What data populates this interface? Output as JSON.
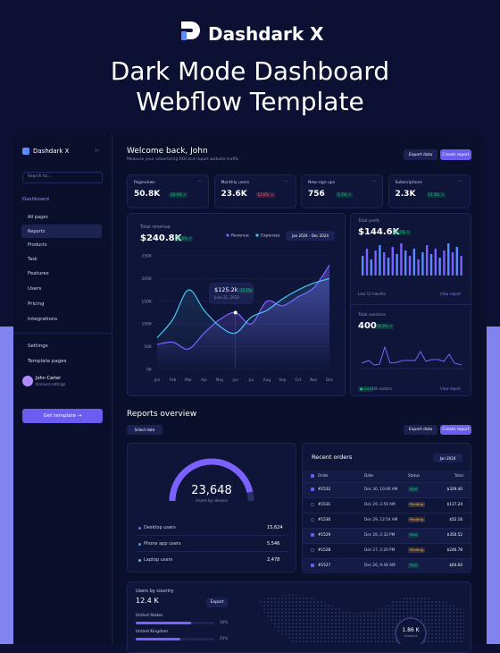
{
  "header": {
    "brand": "Dashdark X",
    "title_line1": "Dark Mode Dashboard",
    "title_line2": "Webflow Template"
  },
  "sidebar": {
    "brand": "Dashdark X",
    "search": "Search for...",
    "dashboard": "Dashboard",
    "sub": [
      "All pages",
      "Reports",
      "Products",
      "Task"
    ],
    "menu": [
      "Features",
      "Users",
      "Pricing",
      "Integrations"
    ],
    "settings": "Settings",
    "templates": "Template pages",
    "user": "John Carter",
    "user_sub": "Account settings",
    "cta": "Get template →"
  },
  "welcome": {
    "title": "Welcome back, John",
    "subtitle": "Measure your advertising ROI and report website traffic.",
    "export": "Export data",
    "create": "Create report"
  },
  "stats": [
    {
      "label": "Pageviews",
      "value": "50.8K",
      "change": "28.4% ↗",
      "up": true
    },
    {
      "label": "Monthly users",
      "value": "23.6K",
      "change": "12.6% ↘",
      "up": false
    },
    {
      "label": "New sign ups",
      "value": "756",
      "change": "3.1% ↗",
      "up": true
    },
    {
      "label": "Subscriptions",
      "value": "2.3K",
      "change": "11.3% ↗",
      "up": true
    }
  ],
  "revenue": {
    "title": "Total revenue",
    "value": "$240.8K",
    "change": "24.6% ↗",
    "range": "Jan 2024 - Dec 2024",
    "tooltip_value": "$125.2k",
    "tooltip_change": "12.5%",
    "tooltip_date": "June 21, 2023",
    "chart": {
      "type": "line",
      "categories": [
        "Jan",
        "Feb",
        "Mar",
        "Apr",
        "May",
        "Jun",
        "Jul",
        "Aug",
        "Sep",
        "Oct",
        "Nov",
        "Dec"
      ],
      "ylim": [
        0,
        250
      ],
      "yticks": [
        {
          "value": 0,
          "label": "0K"
        },
        {
          "value": 50,
          "label": "50K"
        },
        {
          "value": 100,
          "label": "100K"
        },
        {
          "value": 150,
          "label": "150K"
        },
        {
          "value": 200,
          "label": "200K"
        },
        {
          "value": 250,
          "label": "250K"
        }
      ],
      "grid": true,
      "series": [
        {
          "name": "Revenue",
          "color": "#7b61ff",
          "values": [
            55,
            60,
            45,
            80,
            110,
            125,
            100,
            150,
            140,
            160,
            180,
            230
          ]
        },
        {
          "name": "Expenses",
          "color": "#4fc3f7",
          "values": [
            70,
            110,
            175,
            130,
            95,
            80,
            115,
            130,
            155,
            175,
            190,
            200
          ]
        }
      ]
    }
  },
  "profit": {
    "title": "Total profit",
    "value": "$144.6K",
    "change": "28.5% ↗",
    "period": "Last 12 months",
    "link": "View report"
  },
  "sessions": {
    "title": "Total sessions",
    "value": "400",
    "change": "16.8% ↗",
    "live": "● Live",
    "visitors": "10k visitors",
    "link": "View report"
  },
  "reports": {
    "title": "Reports overview",
    "select": "Select date",
    "export": "Export data",
    "create": "Create report"
  },
  "devices": {
    "total": "23,648",
    "label": "Users by device",
    "rows": [
      [
        "Desktop users",
        "15,624"
      ],
      [
        "Phone app users",
        "5,546"
      ],
      [
        "Laptop users",
        "2,478"
      ]
    ]
  },
  "orders": {
    "title": "Recent orders",
    "filter": "Jan 2024",
    "columns": [
      "Order",
      "Date",
      "Status",
      "Total"
    ],
    "rows": [
      [
        "#1532",
        "Dec 30, 10:06 AM",
        "Paid",
        "$329.40"
      ],
      [
        "#1531",
        "Dec 29, 2:59 AM",
        "Pending",
        "$117.24"
      ],
      [
        "#1530",
        "Dec 29, 12:54 AM",
        "Pending",
        "$52.16"
      ],
      [
        "#1529",
        "Dec 28, 2:32 PM",
        "Paid",
        "$350.52"
      ],
      [
        "#1528",
        "Dec 27, 2:20 PM",
        "Pending",
        "$246.78"
      ],
      [
        "#1527",
        "Dec 26, 9:48 AM",
        "Paid",
        "$64.00"
      ]
    ]
  },
  "country": {
    "title": "Users by country",
    "value": "12.4 K",
    "export": "Export",
    "rows": [
      [
        "United States",
        "30%"
      ],
      [
        "United Kingdom",
        "20%"
      ]
    ],
    "map_value": "1.86 K",
    "map_label": "Sessions"
  }
}
